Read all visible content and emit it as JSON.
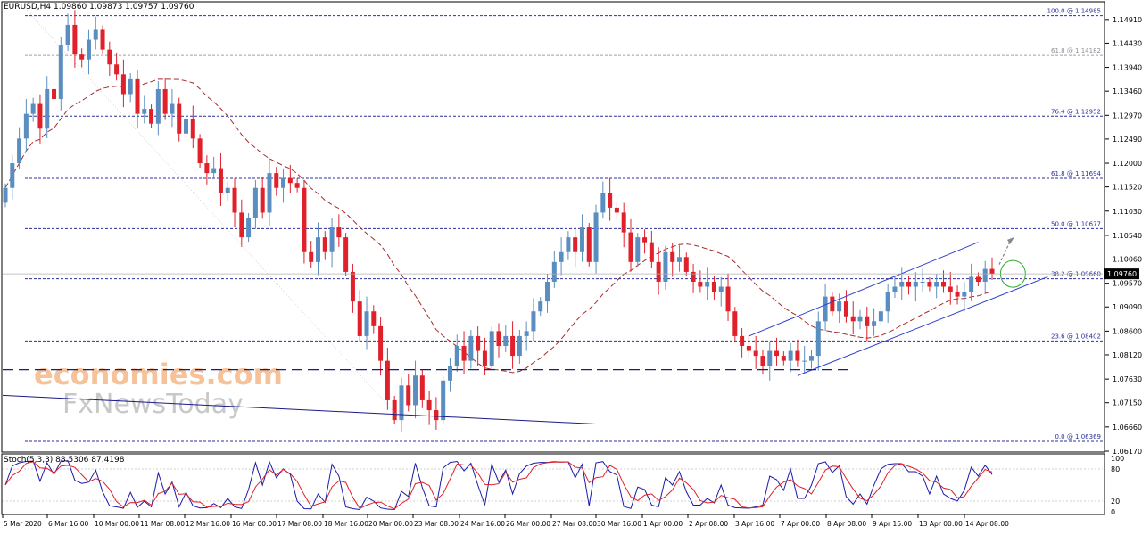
{
  "header": {
    "symbol": "EURUSD,H4",
    "ohlc": "1.09860 1.09873 1.09757 1.09760"
  },
  "current_price": "1.09760",
  "watermark": {
    "line1": "economies.com",
    "line2": "FxNewsToday"
  },
  "price_axis": [
    "1.14910",
    "1.14430",
    "1.13940",
    "1.13460",
    "1.12970",
    "1.12490",
    "1.12000",
    "1.11520",
    "1.11030",
    "1.10540",
    "1.10060",
    "1.09570",
    "1.09090",
    "1.08600",
    "1.08120",
    "1.07630",
    "1.07150",
    "1.06660",
    "1.06170"
  ],
  "fib_levels": [
    {
      "label": "100.0 @ 1.14985",
      "price": 1.14985
    },
    {
      "label": "61.8 @ 1.14182",
      "price": 1.14182
    },
    {
      "label": "76.4 @ 1.12952",
      "price": 1.12952
    },
    {
      "label": "61.8 @ 1.11694",
      "price": 1.11694
    },
    {
      "label": "50.0 @ 1.10677",
      "price": 1.10677
    },
    {
      "label": "38.2 @ 1.09660",
      "price": 1.0966
    },
    {
      "label": "23.6 @ 1.08402",
      "price": 1.08402
    },
    {
      "label": "0.0 @ 1.06369",
      "price": 1.06369
    }
  ],
  "time_axis": [
    "5 Mar 2020",
    "6 Mar 16:00",
    "10 Mar 00:00",
    "11 Mar 08:00",
    "12 Mar 16:00",
    "16 Mar 00:00",
    "17 Mar 08:00",
    "18 Mar 16:00",
    "20 Mar 00:00",
    "23 Mar 08:00",
    "24 Mar 16:00",
    "26 Mar 00:00",
    "27 Mar 08:00",
    "30 Mar 16:00",
    "1 Apr 00:00",
    "2 Apr 08:00",
    "3 Apr 16:00",
    "7 Apr 00:00",
    "8 Apr 08:00",
    "9 Apr 16:00",
    "13 Apr 00:00",
    "14 Apr 08:00"
  ],
  "oscillator": {
    "label": "Stoch(5,3,3) 88.5306 87.4198",
    "axis": [
      "100",
      "80",
      "20",
      "0"
    ],
    "levels": [
      80,
      20
    ]
  },
  "colors": {
    "bull": "#5b8ec0",
    "bear": "#e0202a",
    "fib": "#2b2f9c",
    "ma": "#a52a2a",
    "channel": "#2f3fd0",
    "stoch_main": "#1a1aa8",
    "stoch_signal": "#e0202a"
  },
  "chart_data": {
    "type": "candlestick",
    "timeframe": "H4",
    "ylim": [
      1.0617,
      1.1525
    ],
    "closes": [
      1.115,
      1.12,
      1.125,
      1.13,
      1.132,
      1.127,
      1.135,
      1.133,
      1.144,
      1.148,
      1.142,
      1.141,
      1.145,
      1.147,
      1.143,
      1.14,
      1.138,
      1.134,
      1.137,
      1.13,
      1.131,
      1.128,
      1.135,
      1.13,
      1.132,
      1.126,
      1.129,
      1.125,
      1.12,
      1.118,
      1.119,
      1.114,
      1.115,
      1.11,
      1.105,
      1.109,
      1.115,
      1.11,
      1.118,
      1.115,
      1.117,
      1.116,
      1.115,
      1.102,
      1.1,
      1.105,
      1.102,
      1.107,
      1.105,
      1.098,
      1.092,
      1.085,
      1.09,
      1.087,
      1.08,
      1.072,
      1.068,
      1.075,
      1.071,
      1.077,
      1.072,
      1.07,
      1.068,
      1.076,
      1.079,
      1.083,
      1.08,
      1.085,
      1.082,
      1.079,
      1.086,
      1.083,
      1.085,
      1.081,
      1.085,
      1.086,
      1.09,
      1.092,
      1.096,
      1.1,
      1.102,
      1.105,
      1.102,
      1.107,
      1.1,
      1.11,
      1.114,
      1.111,
      1.11,
      1.106,
      1.1,
      1.105,
      1.104,
      1.1,
      1.096,
      1.102,
      1.1,
      1.101,
      1.098,
      1.096,
      1.095,
      1.096,
      1.094,
      1.095,
      1.09,
      1.085,
      1.083,
      1.082,
      1.081,
      1.079,
      1.082,
      1.081,
      1.08,
      1.082,
      1.08,
      1.08,
      1.081,
      1.088,
      1.093,
      1.09,
      1.092,
      1.089,
      1.088,
      1.089,
      1.087,
      1.088,
      1.09,
      1.094,
      1.095,
      1.096,
      1.095,
      1.096,
      1.096,
      1.095,
      1.096,
      1.095,
      1.094,
      1.093,
      1.094,
      1.097,
      1.096,
      1.0986,
      1.0976
    ]
  }
}
